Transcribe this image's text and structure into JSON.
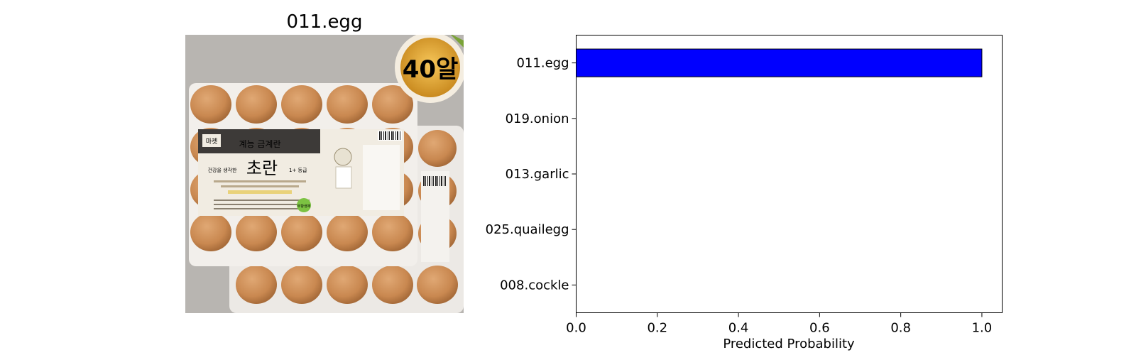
{
  "image_panel": {
    "title": "011.egg",
    "label_texts": {
      "badge": "40알",
      "brand": "마켓",
      "tagline": "계능 금계란",
      "product": "초란",
      "grade": "1+ 등급",
      "small_caption": "건강을 생각한",
      "stamp": "무항생제"
    }
  },
  "colors": {
    "bar": "#0000ff",
    "egg": "#c98850",
    "tray": "#ece9e5",
    "background": "#b8b5b1",
    "label_dark": "#3d3a38"
  },
  "chart_data": {
    "type": "bar",
    "orientation": "horizontal",
    "categories": [
      "011.egg",
      "019.onion",
      "013.garlic",
      "025.quailegg",
      "008.cockle"
    ],
    "values": [
      1.0,
      0.0,
      0.0,
      0.0,
      0.0
    ],
    "xlabel": "Predicted Probability",
    "ylabel": "",
    "xlim": [
      0,
      1.05
    ],
    "xticks": [
      "0.0",
      "0.2",
      "0.4",
      "0.6",
      "0.8",
      "1.0"
    ],
    "grid": false
  }
}
